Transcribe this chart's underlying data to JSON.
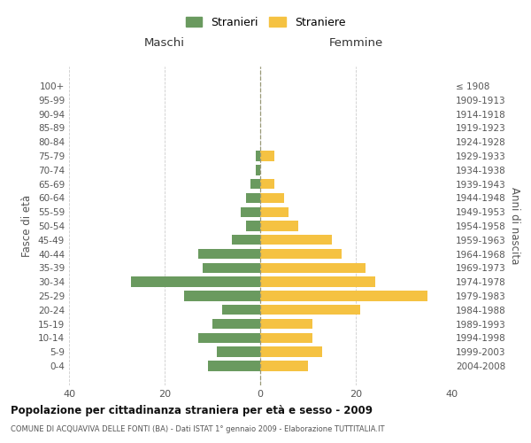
{
  "age_groups": [
    "100+",
    "95-99",
    "90-94",
    "85-89",
    "80-84",
    "75-79",
    "70-74",
    "65-69",
    "60-64",
    "55-59",
    "50-54",
    "45-49",
    "40-44",
    "35-39",
    "30-34",
    "25-29",
    "20-24",
    "15-19",
    "10-14",
    "5-9",
    "0-4"
  ],
  "birth_years": [
    "≤ 1908",
    "1909-1913",
    "1914-1918",
    "1919-1923",
    "1924-1928",
    "1929-1933",
    "1934-1938",
    "1939-1943",
    "1944-1948",
    "1949-1953",
    "1954-1958",
    "1959-1963",
    "1964-1968",
    "1969-1973",
    "1974-1978",
    "1979-1983",
    "1984-1988",
    "1989-1993",
    "1994-1998",
    "1999-2003",
    "2004-2008"
  ],
  "maschi": [
    0,
    0,
    0,
    0,
    0,
    1,
    1,
    2,
    3,
    4,
    3,
    6,
    13,
    12,
    27,
    16,
    8,
    10,
    13,
    9,
    11
  ],
  "femmine": [
    0,
    0,
    0,
    0,
    0,
    3,
    0,
    3,
    5,
    6,
    8,
    15,
    17,
    22,
    24,
    35,
    21,
    11,
    11,
    13,
    10
  ],
  "maschi_color": "#6a9a5f",
  "femmine_color": "#f5c242",
  "title": "Popolazione per cittadinanza straniera per età e sesso - 2009",
  "subtitle": "COMUNE DI ACQUAVIVA DELLE FONTI (BA) - Dati ISTAT 1° gennaio 2009 - Elaborazione TUTTITALIA.IT",
  "ylabel_left": "Fasce di età",
  "ylabel_right": "Anni di nascita",
  "xlabel_left": "Maschi",
  "xlabel_right": "Femmine",
  "legend_stranieri": "Stranieri",
  "legend_straniere": "Straniere",
  "xlim": 40,
  "background_color": "#ffffff",
  "grid_color": "#cccccc"
}
